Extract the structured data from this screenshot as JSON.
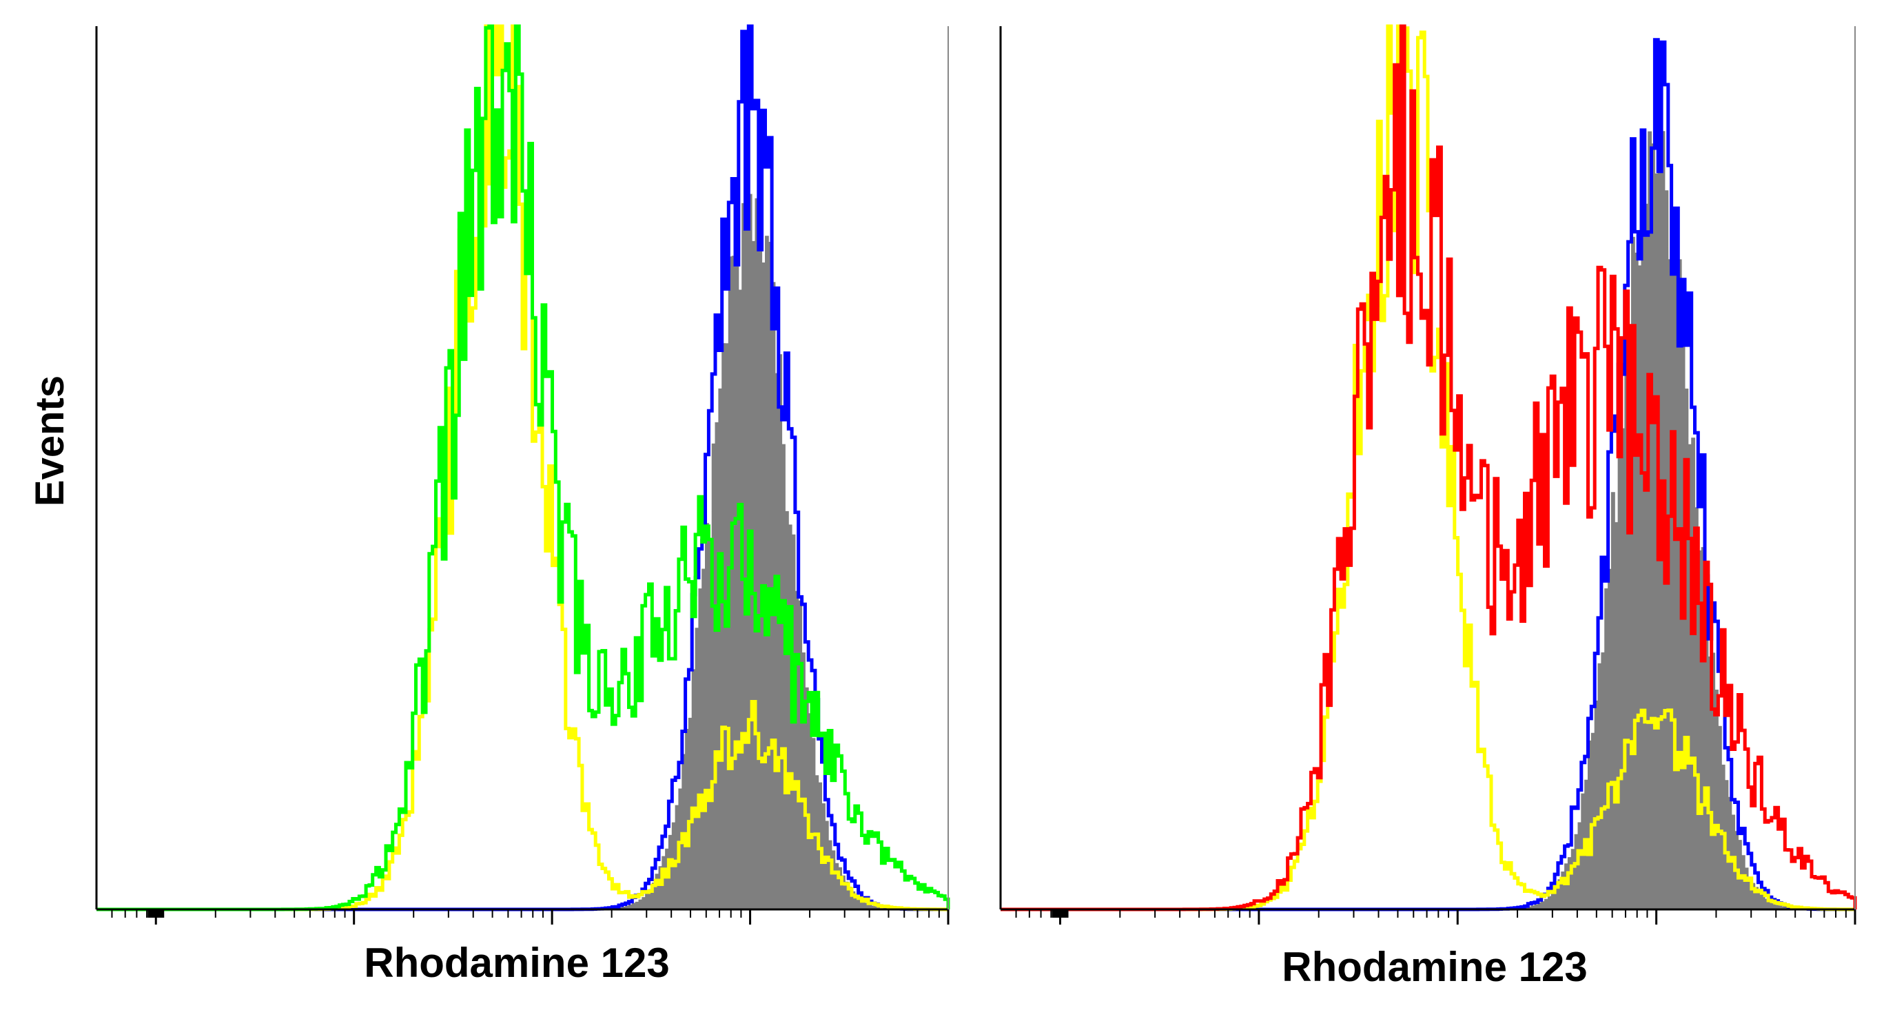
{
  "y_axis_label": "Events",
  "chart_data": [
    {
      "type": "line",
      "panel": "left",
      "xlabel": "Rhodamine 123",
      "ylabel": "Events",
      "x_scale": "log",
      "x_range": [
        -0.3,
        4.0
      ],
      "y_range": [
        0,
        1.0
      ],
      "grid": false,
      "legend": "none",
      "series": [
        {
          "key": "filled-gray",
          "style": "filled",
          "color": "#7f7f7f",
          "peak": 3.0,
          "width": 0.19,
          "height": 0.8,
          "noise": 0.04,
          "seed": 11
        },
        {
          "key": "blue",
          "style": "line",
          "color": "#0000ff",
          "peak": 3.0,
          "width": 0.2,
          "height": 0.9,
          "noise": 0.07,
          "seed": 23
        },
        {
          "key": "yellow",
          "style": "line",
          "color": "#ffff00",
          "peak": 1.72,
          "width": 0.22,
          "height": 0.92,
          "noise": 0.09,
          "seed": 37,
          "peak2": 3.0,
          "width2": 0.24,
          "height2": 0.2
        },
        {
          "key": "green",
          "style": "line",
          "color": "#00ff00",
          "peak": 1.72,
          "width": 0.24,
          "height": 0.88,
          "noise": 0.1,
          "seed": 53,
          "peak2": 2.82,
          "width2": 0.45,
          "height2": 0.4
        }
      ]
    },
    {
      "type": "line",
      "panel": "right",
      "xlabel": "Rhodamine 123",
      "ylabel": "",
      "x_scale": "log",
      "x_range": [
        -0.3,
        4.0
      ],
      "y_range": [
        0,
        1.0
      ],
      "grid": false,
      "legend": "none",
      "series": [
        {
          "key": "filled-gray",
          "style": "filled",
          "color": "#7f7f7f",
          "peak": 3.0,
          "width": 0.19,
          "height": 0.84,
          "noise": 0.04,
          "seed": 71
        },
        {
          "key": "blue",
          "style": "line",
          "color": "#0000ff",
          "peak": 3.0,
          "width": 0.2,
          "height": 0.9,
          "noise": 0.07,
          "seed": 83
        },
        {
          "key": "yellow",
          "style": "line",
          "color": "#ffff00",
          "peak": 1.72,
          "width": 0.22,
          "height": 0.92,
          "noise": 0.09,
          "seed": 97,
          "peak2": 3.0,
          "width2": 0.24,
          "height2": 0.2
        },
        {
          "key": "red",
          "style": "line",
          "color": "#ff0000",
          "peak": 1.72,
          "width": 0.24,
          "height": 0.82,
          "noise": 0.12,
          "seed": 113,
          "peak2": 2.75,
          "width2": 0.45,
          "height2": 0.6
        }
      ]
    }
  ]
}
